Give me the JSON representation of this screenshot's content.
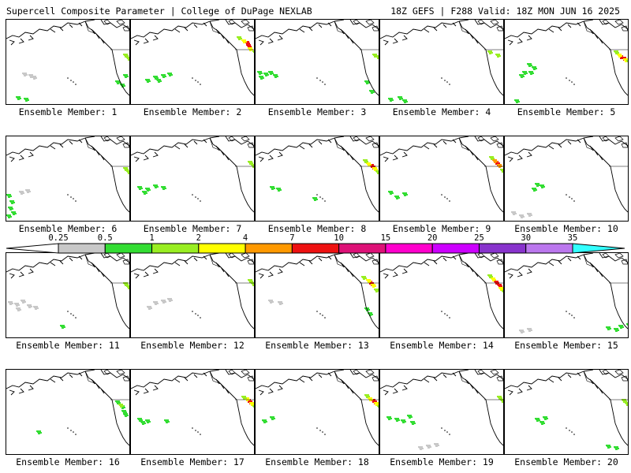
{
  "header": {
    "title": "Supercell Composite Parameter | College of DuPage NEXLAB",
    "run_info": "18Z GEFS | F288 Valid: 18Z MON JUN 16 2025"
  },
  "colorbar": {
    "levels": [
      "0.25",
      "0.5",
      "1",
      "2",
      "4",
      "7",
      "10",
      "15",
      "20",
      "25",
      "30",
      "35"
    ],
    "colors": [
      "#ffffff",
      "#c8c8c8",
      "#33dd33",
      "#99ee22",
      "#ffff00",
      "#ff9900",
      "#ee1111",
      "#dd1177",
      "#ff00cc",
      "#cc00ff",
      "#8833cc",
      "#bb77ee",
      "#33ffff"
    ]
  },
  "members": [
    {
      "label": "Ensemble Member: 1"
    },
    {
      "label": "Ensemble Member: 2"
    },
    {
      "label": "Ensemble Member: 3"
    },
    {
      "label": "Ensemble Member: 4"
    },
    {
      "label": "Ensemble Member: 5"
    },
    {
      "label": "Ensemble Member: 6"
    },
    {
      "label": "Ensemble Member: 7"
    },
    {
      "label": "Ensemble Member: 8"
    },
    {
      "label": "Ensemble Member: 9"
    },
    {
      "label": "Ensemble Member: 10"
    },
    {
      "label": "Ensemble Member: 11"
    },
    {
      "label": "Ensemble Member: 12"
    },
    {
      "label": "Ensemble Member: 13"
    },
    {
      "label": "Ensemble Member: 14"
    },
    {
      "label": "Ensemble Member: 15"
    },
    {
      "label": "Ensemble Member: 16"
    },
    {
      "label": "Ensemble Member: 17"
    },
    {
      "label": "Ensemble Member: 18"
    },
    {
      "label": "Ensemble Member: 19"
    },
    {
      "label": "Ensemble Member: 20"
    }
  ]
}
